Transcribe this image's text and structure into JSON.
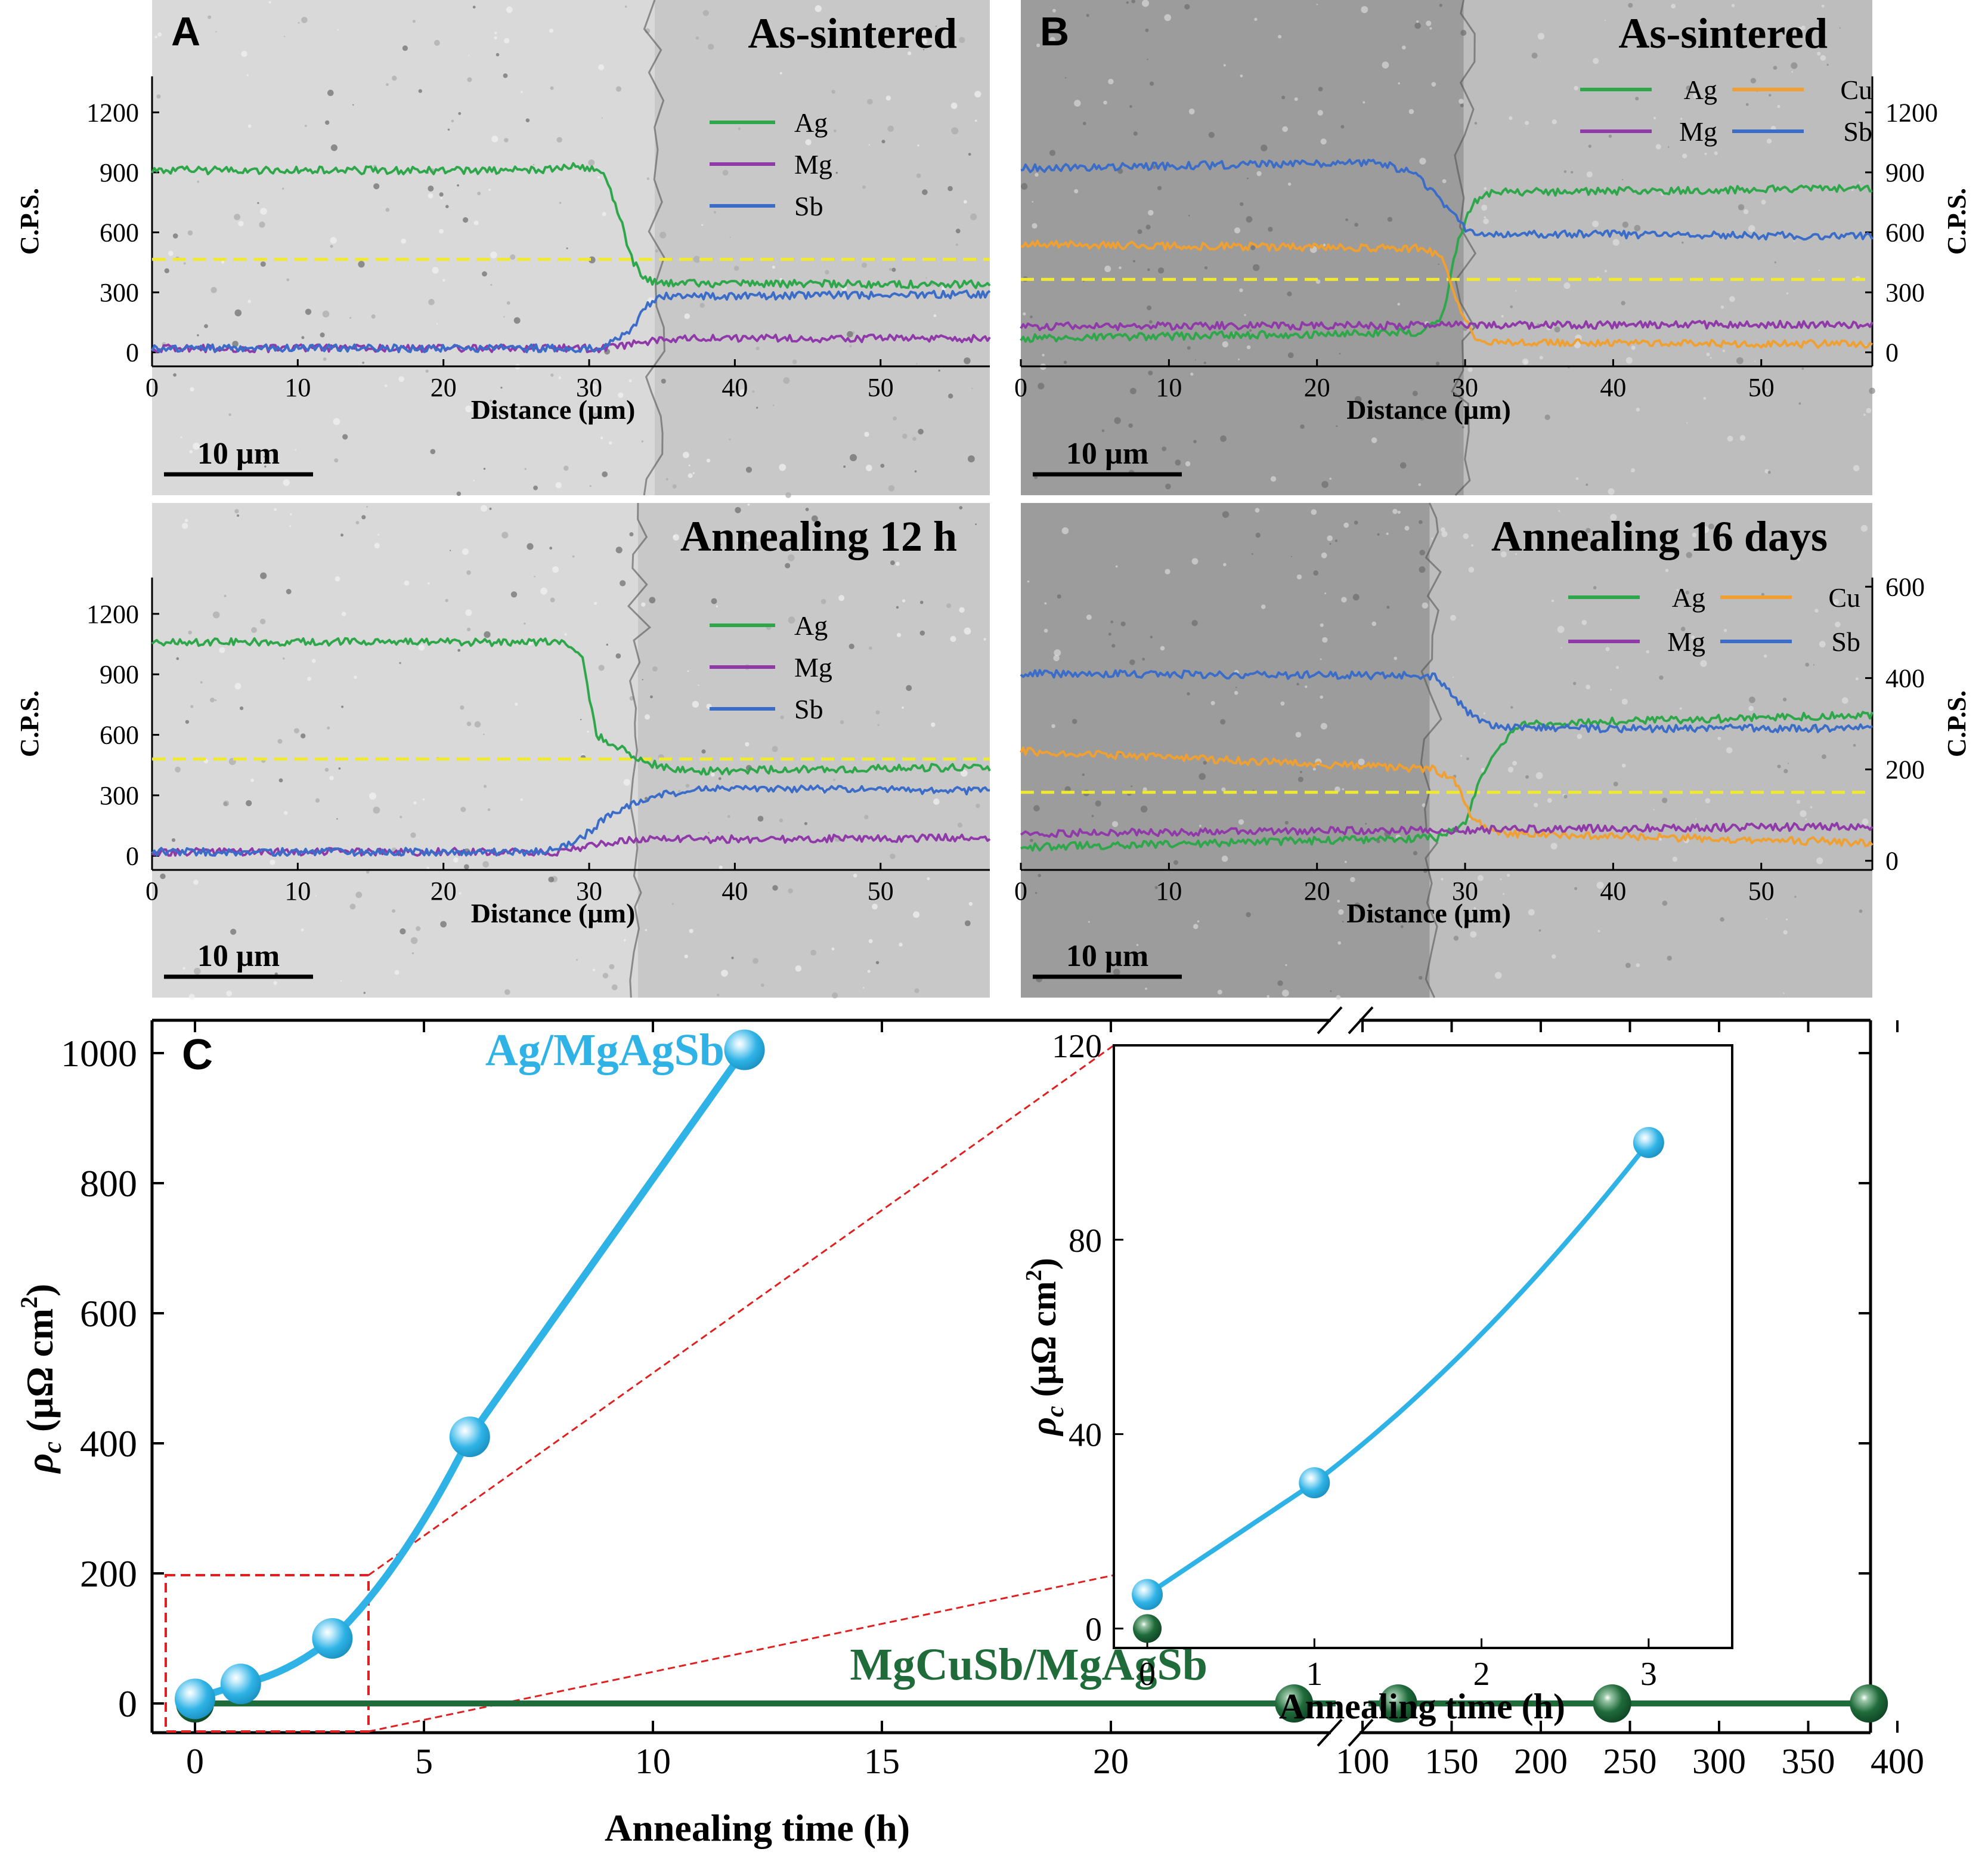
{
  "figure": {
    "colors": {
      "Ag": "#2ea64a",
      "Mg": "#8f3aa8",
      "Sb": "#3a6cc8",
      "Cu": "#f0a030",
      "Ag_MgAgSb": "#2fb3e6",
      "MgCuSb_MgAgSb": "#1f6b3a",
      "marker": "#f0ea2e",
      "zoombox": "#e02020",
      "sem_light": "#d6d6d6",
      "sem_dark": "#9a9a9a"
    },
    "panels": [
      {
        "letter": "A",
        "title": "As-sintered",
        "scalebar": "10 µm",
        "xlabel": "Distance (µm)",
        "ylabel": "C.P.S.",
        "xticks": [
          0,
          10,
          20,
          30,
          40,
          50
        ],
        "yticks": [
          0,
          300,
          600,
          900,
          1200
        ],
        "legend": [
          "Ag",
          "Mg",
          "Sb"
        ],
        "marker_y": 465
      },
      {
        "letter": "B",
        "title": "As-sintered",
        "scalebar": "10 µm",
        "xlabel": "Distance (µm)",
        "ylabel": "C.P.S.",
        "xticks": [
          0,
          10,
          20,
          30,
          40,
          50
        ],
        "yticks": [
          0,
          300,
          600,
          900,
          1200
        ],
        "legend": [
          "Ag",
          "Cu",
          "Mg",
          "Sb"
        ],
        "marker_y": 365
      },
      {
        "letter": "",
        "title": "Annealing 12 h",
        "scalebar": "10 µm",
        "xlabel": "Distance (µm)",
        "ylabel": "C.P.S.",
        "xticks": [
          0,
          10,
          20,
          30,
          40,
          50
        ],
        "yticks": [
          0,
          300,
          600,
          900,
          1200
        ],
        "legend": [
          "Ag",
          "Mg",
          "Sb"
        ],
        "marker_y": 480
      },
      {
        "letter": "",
        "title": "Annealing 16 days",
        "scalebar": "10 µm",
        "xlabel": "Distance (µm)",
        "ylabel": "C.P.S.",
        "xticks": [
          0,
          10,
          20,
          30,
          40,
          50
        ],
        "yticks": [
          0,
          200,
          400,
          600
        ],
        "legend": [
          "Ag",
          "Cu",
          "Mg",
          "Sb"
        ],
        "marker_y": 150
      }
    ],
    "panel_c": {
      "letter": "C",
      "xlabel": "Annealing time (h)",
      "ylabel": "ρ",
      "ylabel_sub": "c",
      "ylabel_unit": " (µΩ cm",
      "ylabel_sup": "2",
      "ylabel_close": ")",
      "yticks": [
        0,
        200,
        400,
        600,
        800,
        1000
      ],
      "xticks_left": [
        0,
        5,
        10,
        15,
        20
      ],
      "xticks_right": [
        100,
        150,
        200,
        250,
        300,
        350,
        400
      ],
      "label_ag": "Ag/MgAgSb",
      "label_cu": "MgCuSb/MgAgSb",
      "inset": {
        "xlabel": "Annealing time (h)",
        "xticks": [
          0,
          1,
          2,
          3
        ],
        "yticks": [
          0,
          40,
          80,
          120
        ]
      }
    }
  },
  "chart_data": [
    {
      "type": "line",
      "title": "As-sintered",
      "panel": "A",
      "xlabel": "Distance (µm)",
      "ylabel": "C.P.S.",
      "xlim": [
        0,
        57.5
      ],
      "ylim": [
        -70,
        1380
      ],
      "series": [
        {
          "name": "Ag",
          "x": [
            0,
            26,
            29,
            31,
            32,
            33,
            34,
            35,
            57.5
          ],
          "y": [
            910,
            910,
            930,
            900,
            700,
            450,
            360,
            345,
            340
          ]
        },
        {
          "name": "Mg",
          "x": [
            0,
            31,
            33,
            35,
            57.5
          ],
          "y": [
            20,
            20,
            40,
            70,
            70
          ]
        },
        {
          "name": "Sb",
          "x": [
            0,
            31,
            33,
            34,
            35,
            57.5
          ],
          "y": [
            20,
            20,
            120,
            240,
            280,
            290
          ]
        }
      ]
    },
    {
      "type": "line",
      "title": "As-sintered",
      "panel": "B",
      "xlabel": "Distance (µm)",
      "ylabel": "C.P.S.",
      "xlim": [
        0,
        57.5
      ],
      "ylim": [
        -70,
        1380
      ],
      "series": [
        {
          "name": "Ag",
          "x": [
            0,
            27,
            28.5,
            29.5,
            30.5,
            32,
            57.5
          ],
          "y": [
            70,
            100,
            180,
            550,
            750,
            800,
            820
          ]
        },
        {
          "name": "Cu",
          "x": [
            0,
            27,
            28.5,
            29.5,
            30.5,
            32,
            57.5
          ],
          "y": [
            540,
            520,
            480,
            250,
            80,
            50,
            40
          ]
        },
        {
          "name": "Mg",
          "x": [
            0,
            57.5
          ],
          "y": [
            130,
            140
          ]
        },
        {
          "name": "Sb",
          "x": [
            0,
            24,
            26.5,
            28.5,
            30,
            31,
            57.5
          ],
          "y": [
            920,
            950,
            900,
            750,
            620,
            595,
            580
          ]
        }
      ]
    },
    {
      "type": "line",
      "title": "Annealing 12 h",
      "panel": "A",
      "xlabel": "Distance (µm)",
      "ylabel": "C.P.S.",
      "xlim": [
        0,
        57.5
      ],
      "ylim": [
        -70,
        1380
      ],
      "series": [
        {
          "name": "Ag",
          "x": [
            0,
            28.5,
            29.5,
            30.5,
            31.5,
            34,
            37,
            57.5
          ],
          "y": [
            1060,
            1060,
            1000,
            600,
            560,
            460,
            420,
            440
          ]
        },
        {
          "name": "Mg",
          "x": [
            0,
            28,
            30,
            33,
            57.5
          ],
          "y": [
            20,
            20,
            50,
            80,
            90
          ]
        },
        {
          "name": "Sb",
          "x": [
            0,
            27,
            29,
            31,
            34,
            38,
            57.5
          ],
          "y": [
            20,
            20,
            60,
            180,
            290,
            340,
            320
          ]
        }
      ]
    },
    {
      "type": "line",
      "title": "Annealing 16 days",
      "panel": "B",
      "xlabel": "Distance (µm)",
      "ylabel": "C.P.S.",
      "xlim": [
        0,
        57.5
      ],
      "ylim": [
        -20,
        620
      ],
      "series": [
        {
          "name": "Ag",
          "x": [
            0,
            28,
            30,
            31,
            32.5,
            34,
            57.5
          ],
          "y": [
            30,
            50,
            80,
            180,
            260,
            300,
            320
          ]
        },
        {
          "name": "Cu",
          "x": [
            0,
            28,
            29.5,
            30.5,
            32,
            57.5
          ],
          "y": [
            240,
            200,
            170,
            90,
            60,
            40
          ]
        },
        {
          "name": "Mg",
          "x": [
            0,
            57.5
          ],
          "y": [
            60,
            75
          ]
        },
        {
          "name": "Sb",
          "x": [
            0,
            28,
            30,
            31.5,
            33,
            57.5
          ],
          "y": [
            410,
            405,
            330,
            300,
            290,
            290
          ]
        }
      ]
    },
    {
      "type": "line",
      "panel": "C",
      "xlabel": "Annealing time (h)",
      "ylabel": "ρc (µΩ cm2)",
      "ylim": [
        -60,
        1040
      ],
      "x_break": "24 h to 100 h",
      "series": [
        {
          "name": "Ag/MgAgSb",
          "x": [
            0,
            1,
            3,
            6,
            12
          ],
          "y": [
            7,
            30,
            100,
            410,
            1005
          ]
        },
        {
          "name": "MgCuSb/MgAgSb",
          "x": [
            0,
            24,
            120,
            240,
            384
          ],
          "y": [
            0,
            0,
            0,
            0,
            0
          ]
        }
      ]
    },
    {
      "type": "line",
      "panel": "C-inset",
      "xlabel": "Annealing time (h)",
      "ylabel": "ρc (µΩ cm2)",
      "xlim": [
        -0.2,
        3.5
      ],
      "ylim": [
        -4,
        120
      ],
      "series": [
        {
          "name": "Ag/MgAgSb",
          "x": [
            0,
            1,
            3
          ],
          "y": [
            7,
            30,
            100
          ]
        },
        {
          "name": "MgCuSb/MgAgSb",
          "x": [
            0
          ],
          "y": [
            0
          ]
        }
      ]
    }
  ]
}
